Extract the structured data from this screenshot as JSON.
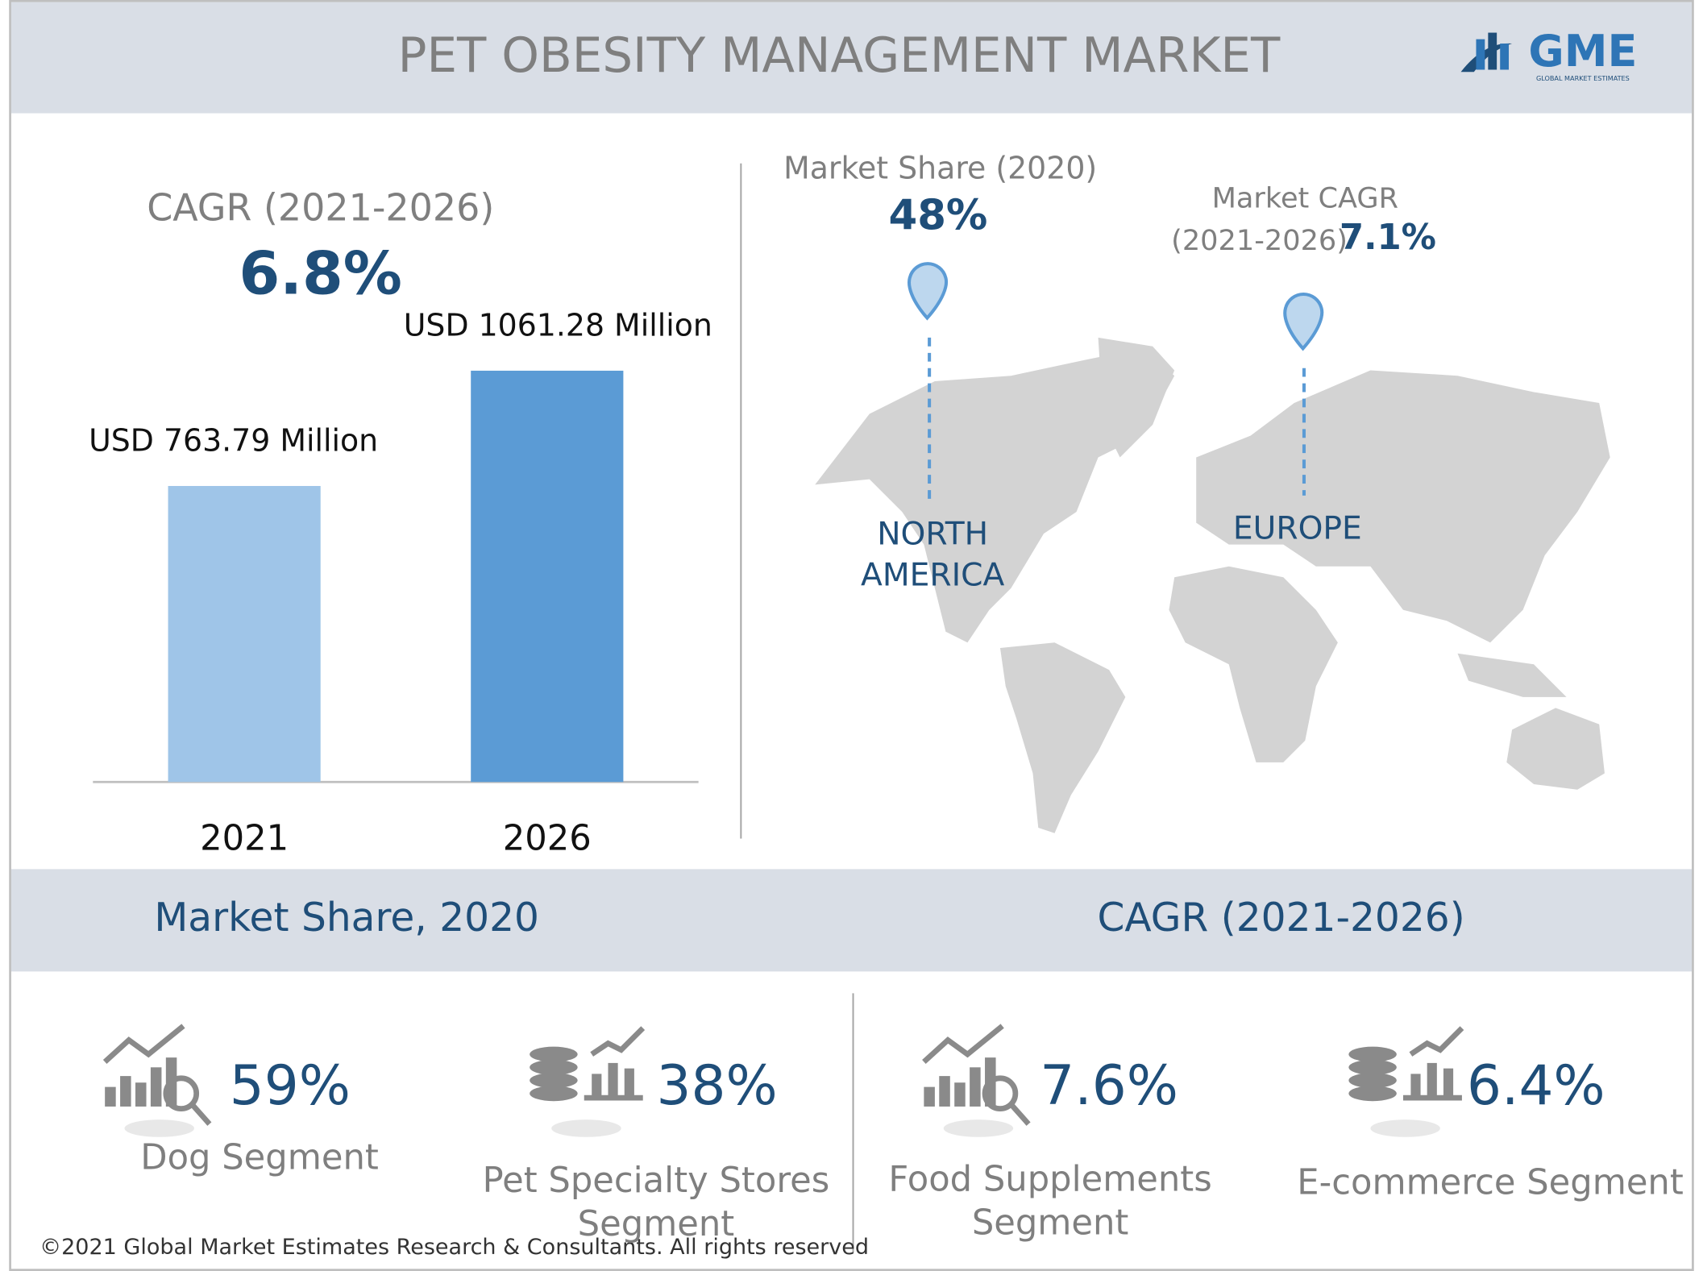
{
  "header": {
    "title": "PET OBESITY MANAGEMENT MARKET",
    "logo": "GME",
    "logo_sub": "GLOBAL MARKET ESTIMATES"
  },
  "chart_data": {
    "type": "bar",
    "title": "CAGR (2021-2026)",
    "subtitle": "6.8%",
    "categories": [
      "2021",
      "2026"
    ],
    "values": [
      763.79,
      1061.28
    ],
    "value_labels": [
      "USD 763.79 Million",
      "USD 1061.28 Million"
    ],
    "colors": [
      "#9fc5e8",
      "#5b9bd5"
    ],
    "ylim": [
      0,
      1200
    ]
  },
  "map": {
    "share_title": "Market Share (2020)",
    "share_value": "48%",
    "share_region": [
      "NORTH",
      "AMERICA"
    ],
    "cagr_title": [
      "Market CAGR",
      "(2021-2026)"
    ],
    "cagr_value": "7.1%",
    "cagr_region": "EUROPE"
  },
  "sections": [
    "Market Share, 2020",
    "CAGR (2021-2026)"
  ],
  "stats": [
    {
      "value": "59%",
      "label": [
        "Dog Segment"
      ]
    },
    {
      "value": "38%",
      "label": [
        "Pet Specialty Stores",
        "Segment"
      ]
    },
    {
      "value": "7.6%",
      "label": [
        "Food Supplements",
        "Segment"
      ]
    },
    {
      "value": "6.4%",
      "label": [
        "E-commerce Segment"
      ]
    }
  ],
  "footer": "©2021 Global Market Estimates Research & Consultants. All rights reserved"
}
